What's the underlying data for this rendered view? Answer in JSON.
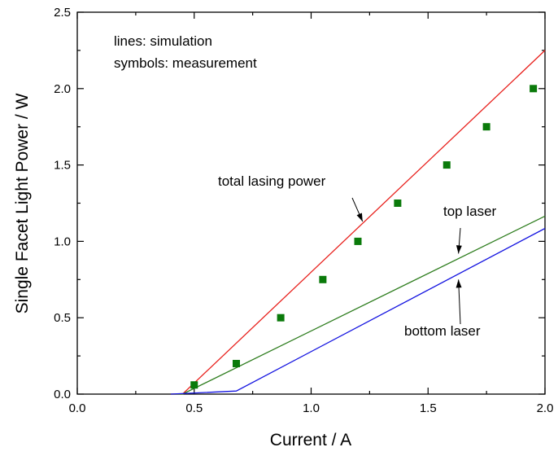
{
  "chart_data": {
    "type": "line",
    "xlabel": "Current / A",
    "ylabel": "Single Facet Light Power / W",
    "xlim": [
      0.0,
      2.0
    ],
    "ylim": [
      0.0,
      2.5
    ],
    "xticks": [
      "0.0",
      "0.5",
      "1.0",
      "1.5",
      "2.0"
    ],
    "yticks": [
      "0.0",
      "0.5",
      "1.0",
      "1.5",
      "2.0",
      "2.5"
    ],
    "grid": false,
    "legend_text": [
      "lines: simulation",
      "symbols: measurement"
    ],
    "series": [
      {
        "name": "total lasing power",
        "kind": "line",
        "color": "#e8201c",
        "x": [
          0.4,
          0.45,
          2.0
        ],
        "y": [
          0.0,
          0.0,
          2.25
        ]
      },
      {
        "name": "top laser",
        "kind": "line",
        "color": "#2e7d1e",
        "x": [
          0.4,
          0.45,
          2.0
        ],
        "y": [
          0.0,
          0.0,
          1.165
        ]
      },
      {
        "name": "bottom laser",
        "kind": "line",
        "color": "#1414e0",
        "x": [
          0.4,
          0.68,
          2.0
        ],
        "y": [
          0.0,
          0.02,
          1.085
        ]
      },
      {
        "name": "",
        "kind": "scatter",
        "color": "#0a7a0a",
        "x": [
          0.5,
          0.68,
          0.87,
          1.05,
          1.2,
          1.37,
          1.58,
          1.75,
          1.95
        ],
        "y": [
          0.06,
          0.2,
          0.5,
          0.75,
          1.0,
          1.25,
          1.5,
          1.75,
          2.0
        ]
      }
    ],
    "annotations": [
      {
        "text": "total lasing power",
        "arrow_to": [
          1.22,
          1.13
        ]
      },
      {
        "text": "top laser",
        "arrow_to": [
          1.63,
          0.92
        ]
      },
      {
        "text": "bottom laser",
        "arrow_to": [
          1.63,
          0.75
        ]
      }
    ]
  }
}
